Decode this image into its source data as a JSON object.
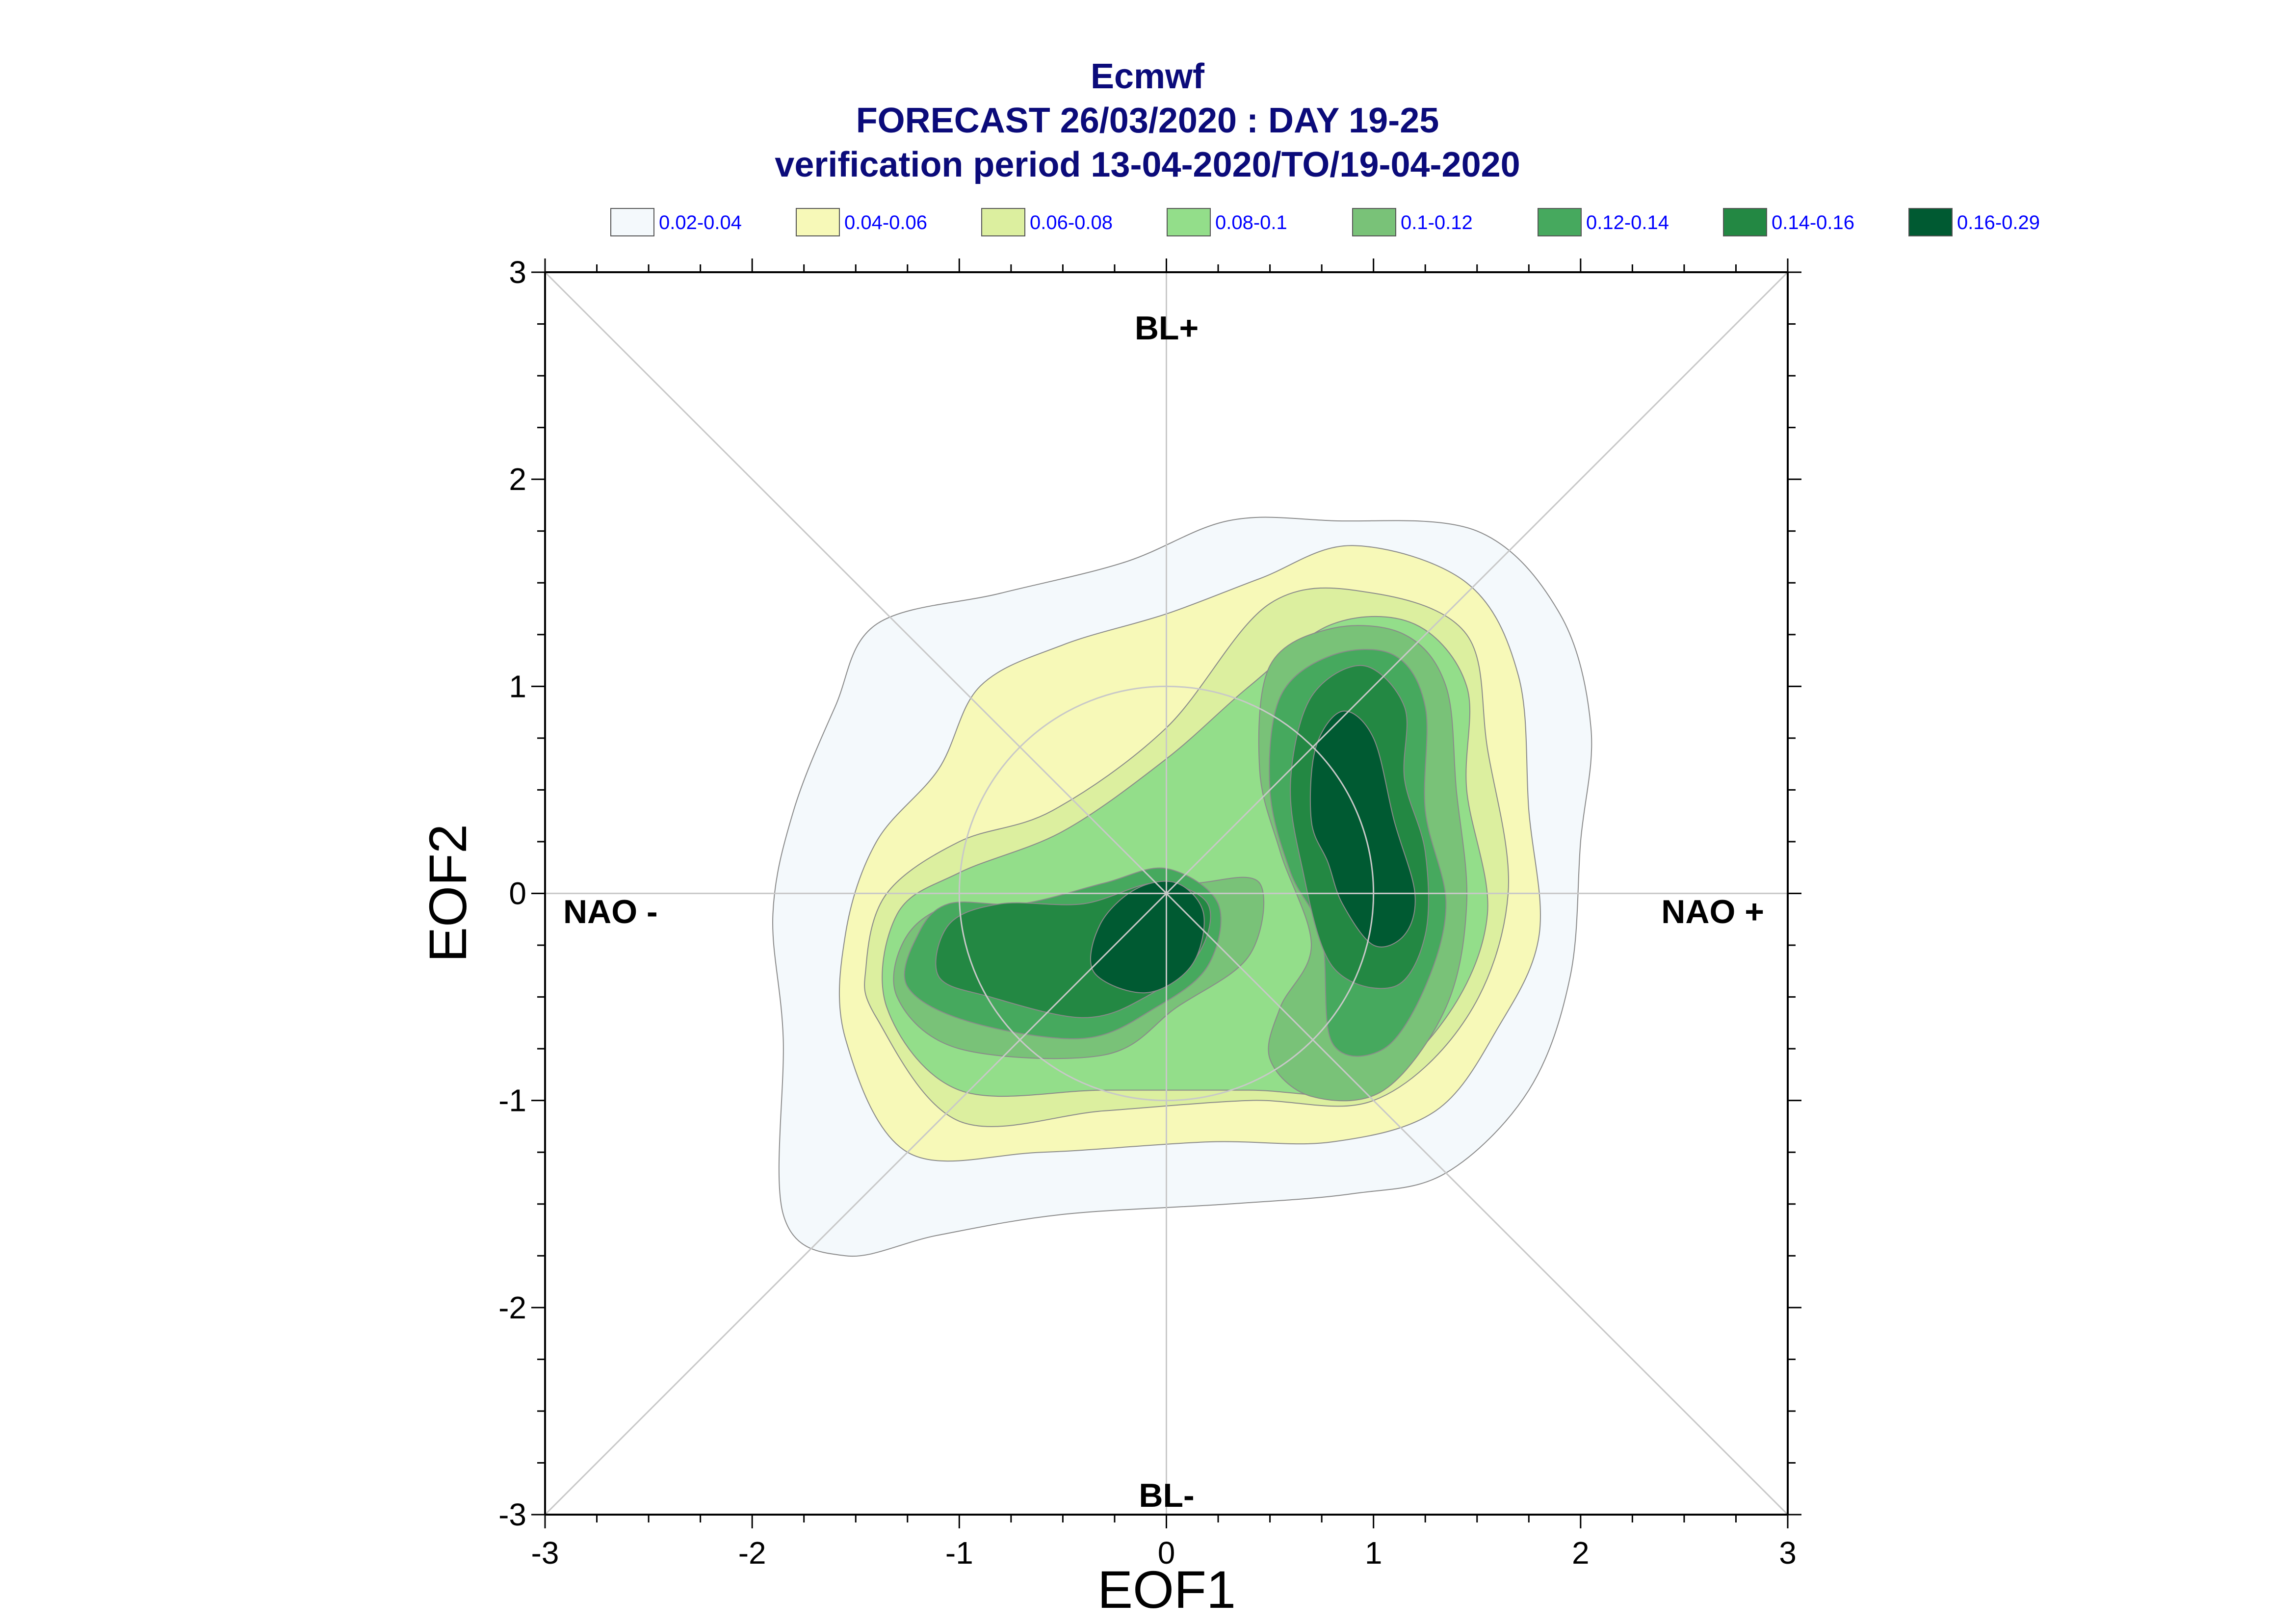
{
  "chart_data": {
    "type": "contour",
    "title": "Ecmwf",
    "subtitle": "FORECAST 26/03/2020 : DAY 19-25",
    "subtitle2": "verification period 13-04-2020/TO/19-04-2020",
    "xlabel": "EOF1",
    "ylabel": "EOF2",
    "xlim": [
      -3,
      3
    ],
    "ylim": [
      -3,
      3
    ],
    "xticks": [
      "-3",
      "-2",
      "-1",
      "0",
      "1",
      "2",
      "3"
    ],
    "yticks": [
      "-3",
      "-2",
      "-1",
      "0",
      "1",
      "2",
      "3"
    ],
    "grid": false,
    "regime_labels": {
      "top": "BL+",
      "bottom": "BL-",
      "left": "NAO -",
      "right": "NAO +"
    },
    "legend": [
      {
        "label": "0.02-0.04",
        "color": "#f4f9fc"
      },
      {
        "label": "0.04-0.06",
        "color": "#f7f9b8"
      },
      {
        "label": "0.06-0.08",
        "color": "#dcef9f"
      },
      {
        "label": "0.08-0.1",
        "color": "#93de8a"
      },
      {
        "label": "0.1-0.12",
        "color": "#79c278"
      },
      {
        "label": "0.12-0.14",
        "color": "#46a95e"
      },
      {
        "label": "0.14-0.16",
        "color": "#238843"
      },
      {
        "label": "0.16-0.29",
        "color": "#005a32"
      }
    ],
    "density_levels": [
      {
        "level": "0.02-0.04",
        "polygons": [
          [
            [
              -1.85,
              -1.55
            ],
            [
              -1.55,
              -1.75
            ],
            [
              -1.1,
              -1.65
            ],
            [
              -0.5,
              -1.55
            ],
            [
              0.3,
              -1.5
            ],
            [
              0.9,
              -1.45
            ],
            [
              1.35,
              -1.35
            ],
            [
              1.75,
              -0.95
            ],
            [
              1.95,
              -0.4
            ],
            [
              2.0,
              0.25
            ],
            [
              2.05,
              0.8
            ],
            [
              1.9,
              1.35
            ],
            [
              1.5,
              1.75
            ],
            [
              0.8,
              1.8
            ],
            [
              0.3,
              1.8
            ],
            [
              -0.2,
              1.6
            ],
            [
              -0.8,
              1.45
            ],
            [
              -1.4,
              1.3
            ],
            [
              -1.6,
              0.9
            ],
            [
              -1.8,
              0.4
            ],
            [
              -1.9,
              -0.1
            ],
            [
              -1.85,
              -0.7
            ]
          ]
        ]
      },
      {
        "level": "0.04-0.06",
        "polygons": [
          [
            [
              -1.55,
              -0.7
            ],
            [
              -1.25,
              -1.25
            ],
            [
              -0.6,
              -1.25
            ],
            [
              0.2,
              -1.2
            ],
            [
              0.8,
              -1.2
            ],
            [
              1.3,
              -1.05
            ],
            [
              1.6,
              -0.65
            ],
            [
              1.8,
              -0.2
            ],
            [
              1.75,
              0.4
            ],
            [
              1.7,
              1.05
            ],
            [
              1.45,
              1.5
            ],
            [
              0.9,
              1.68
            ],
            [
              0.45,
              1.52
            ],
            [
              0.0,
              1.35
            ],
            [
              -0.5,
              1.2
            ],
            [
              -0.9,
              1.0
            ],
            [
              -1.1,
              0.6
            ],
            [
              -1.4,
              0.25
            ],
            [
              -1.55,
              -0.2
            ]
          ]
        ]
      },
      {
        "level": "0.06-0.08",
        "polygons": [
          [
            [
              -1.4,
              -0.6
            ],
            [
              -1.0,
              -1.1
            ],
            [
              -0.3,
              -1.05
            ],
            [
              0.4,
              -1.0
            ],
            [
              1.0,
              -1.0
            ],
            [
              1.45,
              -0.6
            ],
            [
              1.65,
              0.0
            ],
            [
              1.55,
              0.7
            ],
            [
              1.45,
              1.25
            ],
            [
              1.0,
              1.45
            ],
            [
              0.5,
              1.4
            ],
            [
              0.0,
              0.8
            ],
            [
              -0.55,
              0.4
            ],
            [
              -1.0,
              0.25
            ],
            [
              -1.35,
              0.0
            ],
            [
              -1.45,
              -0.35
            ]
          ]
        ]
      },
      {
        "level": "0.08-0.1",
        "polygons": [
          [
            [
              -1.35,
              -0.55
            ],
            [
              -1.0,
              -0.95
            ],
            [
              -0.3,
              -0.95
            ],
            [
              0.4,
              -0.95
            ],
            [
              0.95,
              -0.95
            ],
            [
              1.35,
              -0.6
            ],
            [
              1.55,
              -0.1
            ],
            [
              1.45,
              0.5
            ],
            [
              1.45,
              1.0
            ],
            [
              1.2,
              1.3
            ],
            [
              0.8,
              1.3
            ],
            [
              0.4,
              1.0
            ],
            [
              0.0,
              0.65
            ],
            [
              -0.5,
              0.3
            ],
            [
              -1.0,
              0.1
            ],
            [
              -1.3,
              -0.1
            ]
          ]
        ]
      },
      {
        "level": "0.1-0.12",
        "polygons": [
          [
            [
              -1.3,
              -0.5
            ],
            [
              -1.0,
              -0.75
            ],
            [
              -0.3,
              -0.78
            ],
            [
              0.05,
              -0.55
            ],
            [
              0.4,
              -0.3
            ],
            [
              0.45,
              0.05
            ],
            [
              0.15,
              0.05
            ],
            [
              -0.2,
              0.0
            ],
            [
              -0.6,
              -0.1
            ],
            [
              -1.0,
              -0.05
            ],
            [
              -1.25,
              -0.2
            ]
          ],
          [
            [
              0.5,
              -0.8
            ],
            [
              0.7,
              -0.98
            ],
            [
              1.05,
              -0.95
            ],
            [
              1.35,
              -0.55
            ],
            [
              1.45,
              -0.05
            ],
            [
              1.4,
              0.5
            ],
            [
              1.35,
              1.0
            ],
            [
              1.15,
              1.25
            ],
            [
              0.8,
              1.28
            ],
            [
              0.5,
              1.1
            ],
            [
              0.45,
              0.6
            ],
            [
              0.55,
              0.2
            ],
            [
              0.7,
              -0.25
            ],
            [
              0.55,
              -0.55
            ]
          ]
        ]
      },
      {
        "level": "0.12-0.14",
        "polygons": [
          [
            [
              -1.25,
              -0.45
            ],
            [
              -0.95,
              -0.62
            ],
            [
              -0.4,
              -0.7
            ],
            [
              -0.05,
              -0.55
            ],
            [
              0.2,
              -0.35
            ],
            [
              0.25,
              -0.05
            ],
            [
              0.0,
              0.12
            ],
            [
              -0.3,
              0.05
            ],
            [
              -0.7,
              -0.05
            ],
            [
              -1.05,
              -0.05
            ],
            [
              -1.2,
              -0.2
            ]
          ],
          [
            [
              0.8,
              -0.72
            ],
            [
              1.05,
              -0.75
            ],
            [
              1.25,
              -0.45
            ],
            [
              1.35,
              -0.05
            ],
            [
              1.25,
              0.4
            ],
            [
              1.25,
              0.9
            ],
            [
              1.1,
              1.15
            ],
            [
              0.8,
              1.15
            ],
            [
              0.55,
              0.95
            ],
            [
              0.5,
              0.5
            ],
            [
              0.6,
              0.1
            ],
            [
              0.75,
              -0.2
            ]
          ]
        ]
      },
      {
        "level": "0.14-0.16",
        "polygons": [
          [
            [
              -1.1,
              -0.4
            ],
            [
              -0.85,
              -0.5
            ],
            [
              -0.4,
              -0.6
            ],
            [
              -0.1,
              -0.5
            ],
            [
              0.15,
              -0.3
            ],
            [
              0.2,
              -0.05
            ],
            [
              -0.05,
              0.05
            ],
            [
              -0.4,
              -0.05
            ],
            [
              -0.8,
              -0.05
            ],
            [
              -1.05,
              -0.15
            ]
          ],
          [
            [
              0.8,
              -0.35
            ],
            [
              1.1,
              -0.45
            ],
            [
              1.25,
              -0.2
            ],
            [
              1.25,
              0.2
            ],
            [
              1.15,
              0.55
            ],
            [
              1.15,
              0.9
            ],
            [
              0.95,
              1.1
            ],
            [
              0.7,
              0.95
            ],
            [
              0.6,
              0.55
            ],
            [
              0.65,
              0.15
            ]
          ]
        ]
      },
      {
        "level": "0.16-0.29",
        "polygons": [
          [
            [
              -0.35,
              -0.38
            ],
            [
              -0.1,
              -0.48
            ],
            [
              0.12,
              -0.35
            ],
            [
              0.18,
              -0.1
            ],
            [
              0.05,
              0.05
            ],
            [
              -0.15,
              0.02
            ],
            [
              -0.32,
              -0.15
            ]
          ],
          [
            [
              0.85,
              -0.05
            ],
            [
              1.0,
              -0.25
            ],
            [
              1.15,
              -0.2
            ],
            [
              1.2,
              0.0
            ],
            [
              1.1,
              0.35
            ],
            [
              1.0,
              0.75
            ],
            [
              0.85,
              0.88
            ],
            [
              0.72,
              0.7
            ],
            [
              0.7,
              0.35
            ],
            [
              0.78,
              0.15
            ]
          ]
        ]
      }
    ]
  }
}
